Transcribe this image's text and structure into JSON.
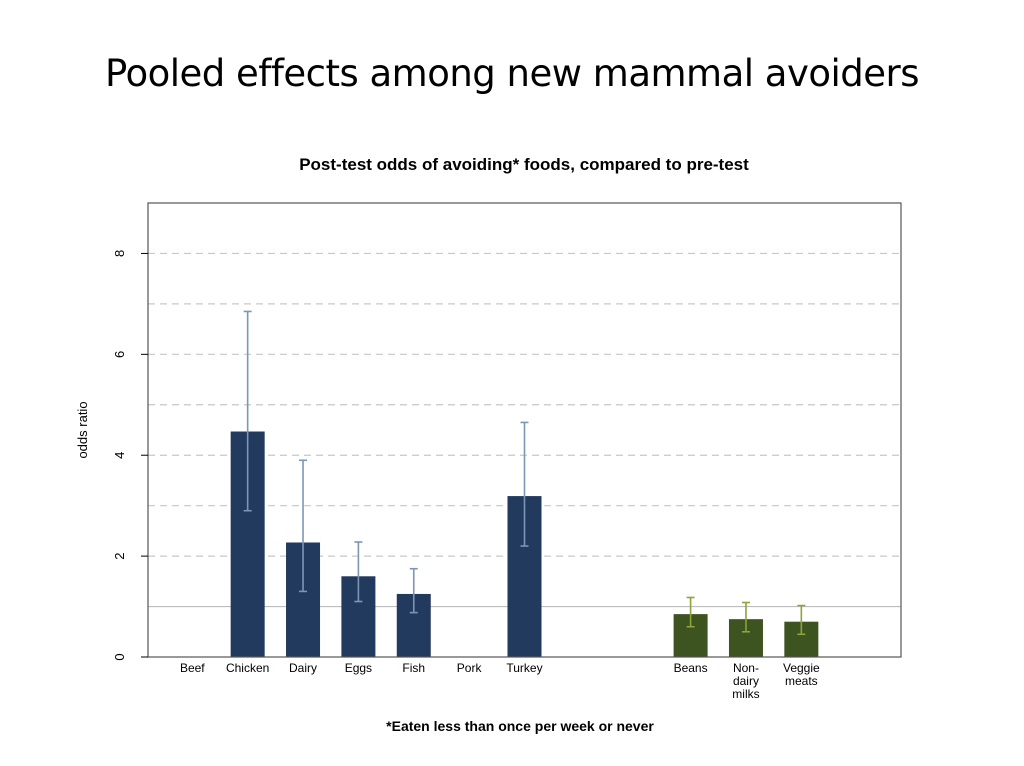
{
  "slide": {
    "title": "Pooled effects among new mammal avoiders"
  },
  "colors": {
    "animal": "#223a5e",
    "plant": "#3d5320",
    "animal_error": "#7a97b6",
    "plant_error": "#8ea33a",
    "grid": "#c8c8c8",
    "reference": "#bdbdbd",
    "frame": "#555555"
  },
  "chart_data": {
    "type": "bar",
    "title": "Post-test odds of avoiding* foods, compared to pre-test",
    "xlabel": "*Eaten less than once per week or never",
    "ylabel": "odds ratio",
    "ylim": [
      0,
      9
    ],
    "yticks": [
      0,
      2,
      4,
      6,
      8
    ],
    "gridlines": [
      1,
      2,
      3,
      4,
      5,
      6,
      7,
      8
    ],
    "reference_line": 1,
    "categories": [
      [
        "Beef"
      ],
      [
        "Chicken"
      ],
      [
        "Dairy"
      ],
      [
        "Eggs"
      ],
      [
        "Fish"
      ],
      [
        "Pork"
      ],
      [
        "Turkey"
      ],
      [
        "Beans"
      ],
      [
        "Non-",
        "dairy",
        "milks"
      ],
      [
        "Veggie",
        "meats"
      ]
    ],
    "x_positions": [
      1,
      2,
      3,
      4,
      5,
      6,
      7,
      10,
      11,
      12
    ],
    "x_range": [
      0.2,
      13.8
    ],
    "groups": [
      "animal",
      "animal",
      "animal",
      "animal",
      "animal",
      "animal",
      "animal",
      "plant",
      "plant",
      "plant"
    ],
    "values": [
      null,
      4.47,
      2.27,
      1.6,
      1.25,
      null,
      3.19,
      0.85,
      0.75,
      0.7
    ],
    "ci_low": [
      null,
      2.9,
      1.3,
      1.1,
      0.88,
      null,
      2.2,
      0.6,
      0.5,
      0.45
    ],
    "ci_high": [
      null,
      6.85,
      3.9,
      2.28,
      1.75,
      null,
      4.65,
      1.18,
      1.08,
      1.02
    ],
    "grid": true
  }
}
